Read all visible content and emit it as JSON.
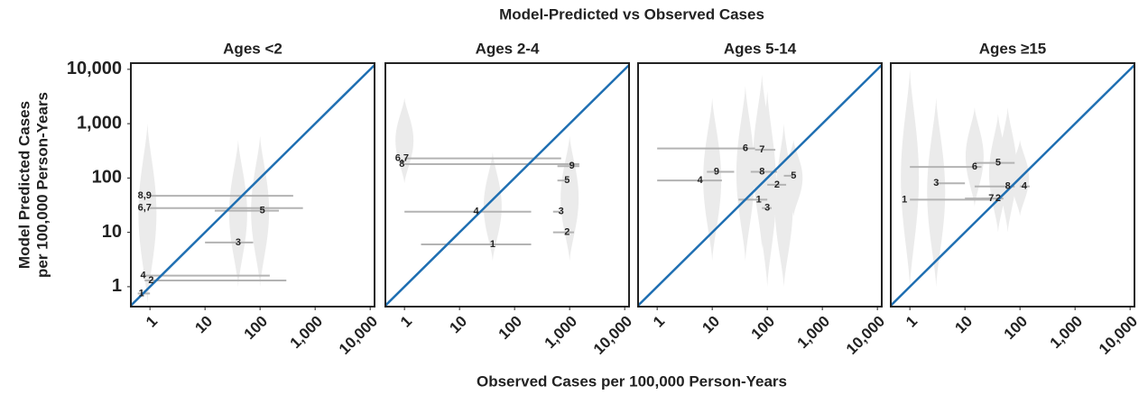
{
  "title": "Model-Predicted vs Observed Cases",
  "x_label": "Observed Cases per 100,000 Person-Years",
  "y_label": [
    "Model Predicted Cases",
    "per 100,000 Person-Years"
  ],
  "chart_data": [
    {
      "type": "violin",
      "title": "Ages <2",
      "xscale": "log",
      "yscale": "log",
      "xlim": [
        0.45,
        12000
      ],
      "ylim": [
        0.43,
        13000
      ],
      "xticks": [
        1,
        10,
        100,
        {
          "value": 1000,
          "label": "1,000"
        },
        {
          "value": 10000,
          "label": "10,000"
        }
      ],
      "yticks": [
        1,
        10,
        100,
        {
          "value": 1000,
          "label": "1,000"
        },
        {
          "value": 10000,
          "label": "10,000"
        }
      ],
      "violin_color": "#ebebeb",
      "range_color": "#b3b3b3",
      "diagonal_color": "#1f6fb2",
      "violins": [
        {
          "x": 0.9,
          "ylow": 0.5,
          "yhigh": 1000
        },
        {
          "x": 40,
          "ylow": 1,
          "yhigh": 500
        },
        {
          "x": 100,
          "ylow": 1,
          "yhigh": 600
        }
      ],
      "points": [
        {
          "label": "1",
          "x": 0.7,
          "y": 0.75,
          "x_low": 0.6,
          "x_high": 1
        },
        {
          "label": "4",
          "x": 0.75,
          "y": 1.6,
          "x_low": 0.7,
          "x_high": 150
        },
        {
          "label": "2",
          "x": 1.05,
          "y": 1.3,
          "x_low": 0.8,
          "x_high": 300
        },
        {
          "label": "3",
          "x": 40,
          "y": 6.5,
          "x_low": 10,
          "x_high": 75
        },
        {
          "label": "5",
          "x": 110,
          "y": 25,
          "x_low": 15,
          "x_high": 220
        },
        {
          "label": "6,7",
          "x": 0.8,
          "y": 28,
          "x_low": 1,
          "x_high": 600
        },
        {
          "label": "8,9",
          "x": 0.8,
          "y": 47,
          "x_low": 1,
          "x_high": 400
        }
      ]
    },
    {
      "type": "violin",
      "title": "Ages 2-4",
      "xscale": "log",
      "yscale": "log",
      "xlim": [
        0.45,
        12000
      ],
      "ylim": [
        0.43,
        13000
      ],
      "xticks": [
        1,
        10,
        100,
        {
          "value": 1000,
          "label": "1,000"
        },
        {
          "value": 10000,
          "label": "10,000"
        }
      ],
      "violin_color": "#ebebeb",
      "range_color": "#b3b3b3",
      "diagonal_color": "#1f6fb2",
      "violins": [
        {
          "x": 1,
          "ylow": 80,
          "yhigh": 3000
        },
        {
          "x": 40,
          "ylow": 3,
          "yhigh": 300
        },
        {
          "x": 1000,
          "ylow": 3,
          "yhigh": 600
        }
      ],
      "points": [
        {
          "label": "6,7",
          "x": 0.9,
          "y": 230,
          "x_low": 1,
          "x_high": 700
        },
        {
          "label": "8",
          "x": 0.9,
          "y": 180,
          "x_low": 1,
          "x_high": 1500
        },
        {
          "label": "9",
          "x": 1100,
          "y": 165,
          "x_low": 600,
          "x_high": 1500
        },
        {
          "label": "5",
          "x": 900,
          "y": 90,
          "x_low": 600,
          "x_high": 900
        },
        {
          "label": "4",
          "x": 20,
          "y": 24,
          "x_low": 1,
          "x_high": 200
        },
        {
          "label": "3",
          "x": 700,
          "y": 24,
          "x_low": 500,
          "x_high": 700
        },
        {
          "label": "2",
          "x": 900,
          "y": 10,
          "x_low": 500,
          "x_high": 1200
        },
        {
          "label": "1",
          "x": 40,
          "y": 6,
          "x_low": 2,
          "x_high": 200
        }
      ]
    },
    {
      "type": "violin",
      "title": "Ages 5-14",
      "xscale": "log",
      "yscale": "log",
      "xlim": [
        0.45,
        12000
      ],
      "ylim": [
        0.43,
        13000
      ],
      "xticks": [
        1,
        10,
        100,
        {
          "value": 1000,
          "label": "1,000"
        },
        {
          "value": 10000,
          "label": "10,000"
        }
      ],
      "violin_color": "#ebebeb",
      "range_color": "#b3b3b3",
      "diagonal_color": "#1f6fb2",
      "violins": [
        {
          "x": 10,
          "ylow": 3,
          "yhigh": 3000
        },
        {
          "x": 40,
          "ylow": 3,
          "yhigh": 5000
        },
        {
          "x": 80,
          "ylow": 5,
          "yhigh": 8000
        },
        {
          "x": 100,
          "ylow": 1,
          "yhigh": 4000
        },
        {
          "x": 200,
          "ylow": 1,
          "yhigh": 1000
        },
        {
          "x": 300,
          "ylow": 20,
          "yhigh": 500
        }
      ],
      "points": [
        {
          "label": "6",
          "x": 40,
          "y": 350,
          "x_low": 1,
          "x_high": 60
        },
        {
          "label": "7",
          "x": 80,
          "y": 330,
          "x_low": 60,
          "x_high": 140
        },
        {
          "label": "9",
          "x": 12,
          "y": 130,
          "x_low": 8,
          "x_high": 25
        },
        {
          "label": "8",
          "x": 80,
          "y": 130,
          "x_low": 50,
          "x_high": 150
        },
        {
          "label": "4",
          "x": 6,
          "y": 90,
          "x_low": 1,
          "x_high": 15
        },
        {
          "label": "5",
          "x": 300,
          "y": 110,
          "x_low": 200,
          "x_high": 300
        },
        {
          "label": "2",
          "x": 150,
          "y": 75,
          "x_low": 100,
          "x_high": 220
        },
        {
          "label": "1",
          "x": 70,
          "y": 40,
          "x_low": 30,
          "x_high": 100
        },
        {
          "label": "3",
          "x": 100,
          "y": 28,
          "x_low": 80,
          "x_high": 120
        }
      ]
    },
    {
      "type": "violin",
      "title": "Ages ≥15",
      "xscale": "log",
      "yscale": "log",
      "xlim": [
        0.45,
        12000
      ],
      "ylim": [
        0.43,
        13000
      ],
      "xticks": [
        1,
        10,
        100,
        {
          "value": 1000,
          "label": "1,000"
        },
        {
          "value": 10000,
          "label": "10,000"
        }
      ],
      "violin_color": "#ebebeb",
      "range_color": "#b3b3b3",
      "diagonal_color": "#1f6fb2",
      "violins": [
        {
          "x": 1,
          "ylow": 1,
          "yhigh": 10000
        },
        {
          "x": 3,
          "ylow": 1,
          "yhigh": 3000
        },
        {
          "x": 15,
          "ylow": 30,
          "yhigh": 2000
        },
        {
          "x": 40,
          "ylow": 10,
          "yhigh": 1500
        },
        {
          "x": 60,
          "ylow": 10,
          "yhigh": 2000
        },
        {
          "x": 100,
          "ylow": 20,
          "yhigh": 500
        }
      ],
      "points": [
        {
          "label": "1",
          "x": 0.8,
          "y": 40,
          "x_low": 1,
          "x_high": 30
        },
        {
          "label": "3",
          "x": 3,
          "y": 80,
          "x_low": 3,
          "x_high": 10
        },
        {
          "label": "6",
          "x": 15,
          "y": 160,
          "x_low": 1,
          "x_high": 20
        },
        {
          "label": "5",
          "x": 40,
          "y": 190,
          "x_low": 15,
          "x_high": 80
        },
        {
          "label": "7",
          "x": 30,
          "y": 42,
          "x_low": 10,
          "x_high": 40
        },
        {
          "label": "2",
          "x": 40,
          "y": 42,
          "x_low": 20,
          "x_high": 50
        },
        {
          "label": "8",
          "x": 60,
          "y": 70,
          "x_low": 15,
          "x_high": 80
        },
        {
          "label": "4",
          "x": 120,
          "y": 70,
          "x_low": 100,
          "x_high": 150
        }
      ]
    }
  ]
}
